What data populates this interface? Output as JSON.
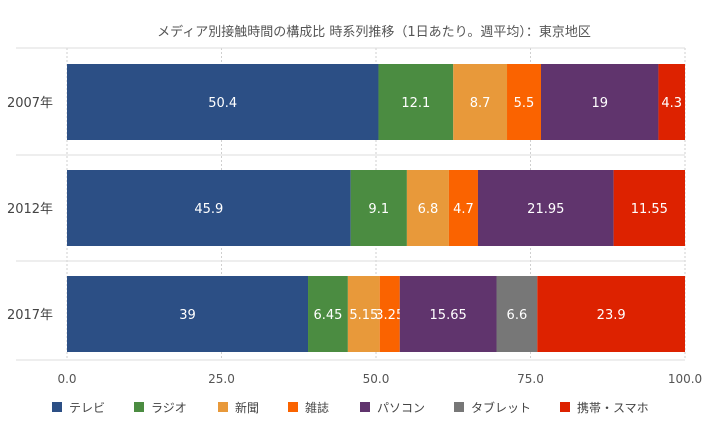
{
  "chart_data": {
    "type": "bar",
    "orientation": "horizontal",
    "stacked": true,
    "title": "メディア別接触時間の構成比 時系列推移（1日あたり。週平均）：東京地区",
    "categories": [
      "2007年",
      "2012年",
      "2017年"
    ],
    "series": [
      {
        "name": "テレビ",
        "color": "#2c4f85",
        "values": [
          50.4,
          45.9,
          39
        ],
        "labels": [
          "50.4",
          "45.9",
          "39"
        ]
      },
      {
        "name": "ラジオ",
        "color": "#4b8c41",
        "values": [
          12.1,
          9.1,
          6.45
        ],
        "labels": [
          "12.1",
          "9.1",
          "6.45"
        ]
      },
      {
        "name": "新聞",
        "color": "#e8993a",
        "values": [
          8.7,
          6.8,
          5.15
        ],
        "labels": [
          "8.7",
          "6.8",
          "5.15"
        ]
      },
      {
        "name": "雑誌",
        "color": "#fa6300",
        "values": [
          5.5,
          4.7,
          3.25
        ],
        "labels": [
          "5.5",
          "4.7",
          "3.25"
        ]
      },
      {
        "name": "パソコン",
        "color": "#60346d",
        "values": [
          19,
          21.95,
          15.65
        ],
        "labels": [
          "19",
          "21.95",
          "15.65"
        ]
      },
      {
        "name": "タブレット",
        "color": "#777777",
        "values": [
          0,
          0,
          6.6
        ],
        "labels": [
          "",
          "",
          "6.6"
        ]
      },
      {
        "name": "携帯・スマホ",
        "color": "#dd2200",
        "values": [
          4.3,
          11.55,
          23.9
        ],
        "labels": [
          "4.3",
          "11.55",
          "23.9"
        ]
      }
    ],
    "xlim": [
      0,
      100
    ],
    "xticks": [
      "0.0",
      "25.0",
      "50.0",
      "75.0",
      "100.0"
    ],
    "grid": true,
    "legend": "bottom"
  }
}
